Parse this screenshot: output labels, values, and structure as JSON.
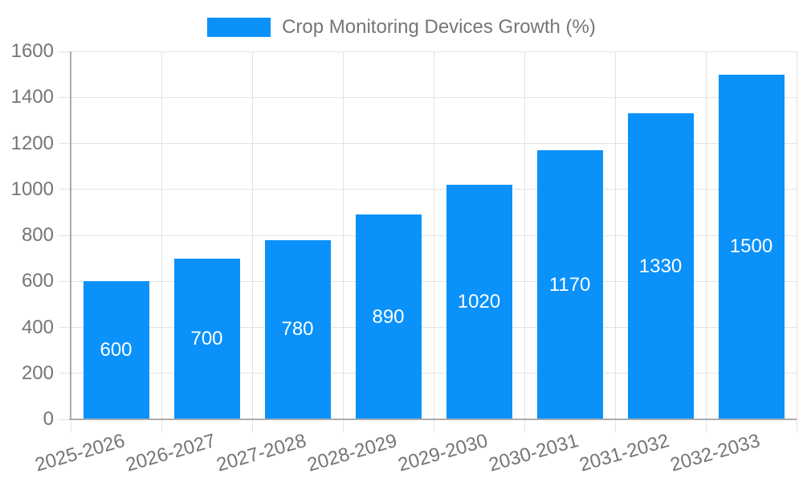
{
  "legend": {
    "label": "Crop Monitoring Devices Growth (%)"
  },
  "colors": {
    "bar": "#0a91fa",
    "bar_value_text": "#ffffff",
    "tick_text": "#757575",
    "gridline": "#e3e3e3",
    "axis_line": "#ababab",
    "background": "#ffffff"
  },
  "chart_data": {
    "type": "bar",
    "title": "Crop Monitoring Devices Growth (%)",
    "categories": [
      "2025-2026",
      "2026-2027",
      "2027-2028",
      "2028-2029",
      "2029-2030",
      "2030-2031",
      "2031-2032",
      "2032-2033"
    ],
    "values": [
      600,
      700,
      780,
      890,
      1020,
      1170,
      1330,
      1500
    ],
    "bar_labels": [
      "600",
      "700",
      "780",
      "890",
      "1020",
      "1170",
      "1330",
      "1500"
    ],
    "xlabel": "",
    "ylabel": "",
    "ylim": [
      0,
      1600
    ],
    "yticks": [
      0,
      200,
      400,
      600,
      800,
      1000,
      1200,
      1400,
      1600
    ],
    "grid": true,
    "legend_position": "top-center",
    "bar_labels_inside": "center",
    "x_label_rotation_deg": -16
  }
}
